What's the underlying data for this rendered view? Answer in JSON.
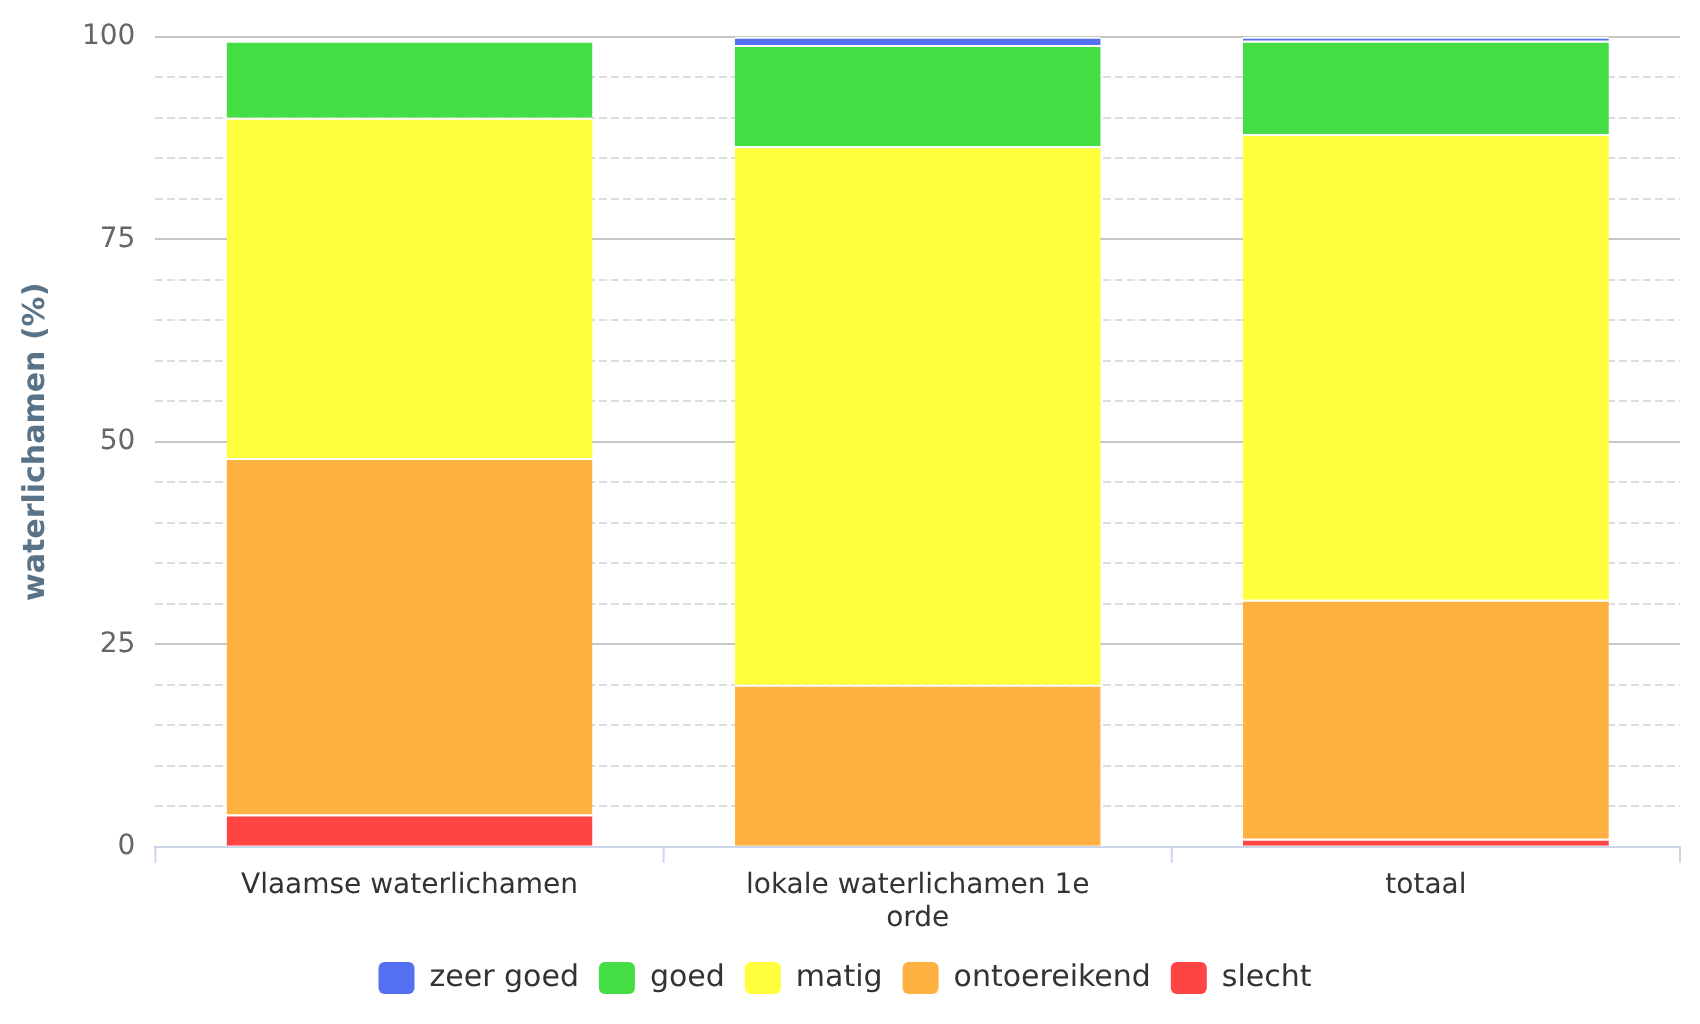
{
  "chart_data": {
    "type": "bar",
    "stacked": true,
    "ylabel": "waterlichamen (%)",
    "categories": [
      "Vlaamse waterlichamen",
      "lokale waterlichamen 1e orde",
      "totaal"
    ],
    "series": [
      {
        "name": "slecht",
        "color": "#ff4444",
        "values": [
          4,
          0,
          1
        ]
      },
      {
        "name": "ontoereikend",
        "color": "#ffb142",
        "values": [
          44,
          20,
          29.5
        ]
      },
      {
        "name": "matig",
        "color": "#ffff3c",
        "values": [
          42,
          66.5,
          57.5
        ]
      },
      {
        "name": "goed",
        "color": "#44dd44",
        "values": [
          9.5,
          12.5,
          11.5
        ]
      },
      {
        "name": "zeer goed",
        "color": "#5470f0",
        "values": [
          0,
          1,
          0.5
        ]
      }
    ],
    "ylim": [
      0,
      100
    ],
    "yticks": [
      0,
      {
        "value": 5,
        "label": null
      },
      {
        "value": 10,
        "label": null
      },
      {
        "value": 15,
        "label": null
      },
      {
        "value": 20,
        "label": null
      },
      25,
      {
        "value": 30,
        "label": null
      },
      {
        "value": 35,
        "label": null
      },
      {
        "value": 40,
        "label": null
      },
      {
        "value": 45,
        "label": null
      },
      50,
      {
        "value": 55,
        "label": null
      },
      {
        "value": 60,
        "label": null
      },
      {
        "value": 65,
        "label": null
      },
      {
        "value": 70,
        "label": null
      },
      75,
      {
        "value": 80,
        "label": null
      },
      {
        "value": 85,
        "label": null
      },
      {
        "value": 90,
        "label": null
      },
      {
        "value": 95,
        "label": null
      },
      100
    ],
    "grid": "y",
    "legend": "bottom"
  }
}
